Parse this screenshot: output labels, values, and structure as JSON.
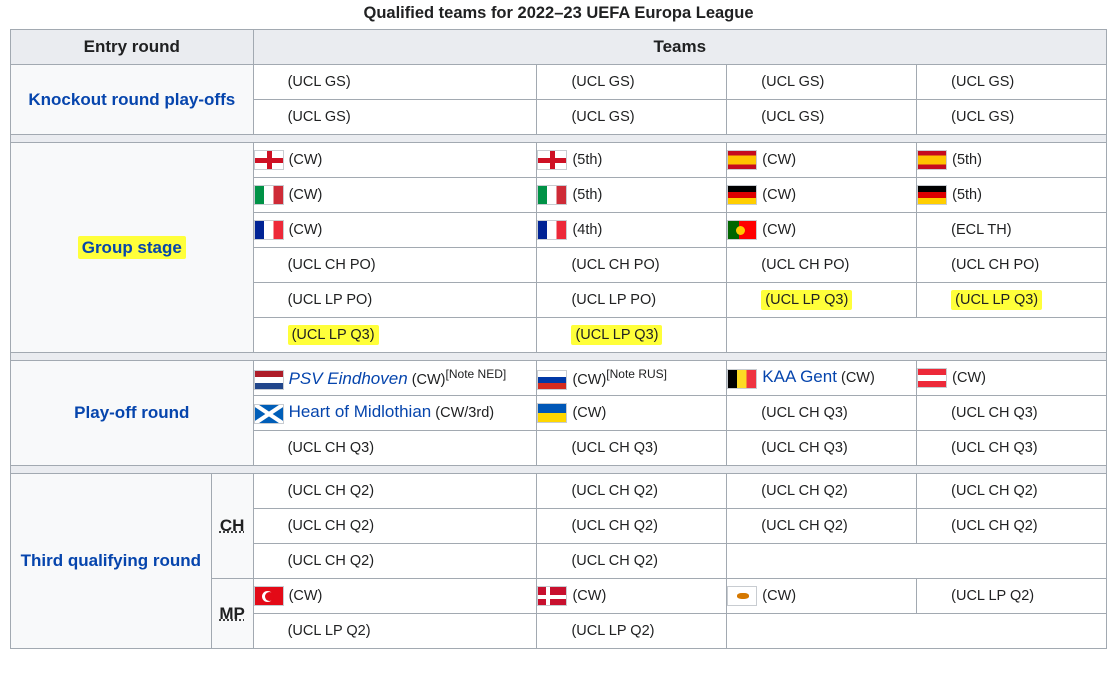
{
  "caption": "Qualified teams for 2022–23 UEFA Europa League",
  "headers": {
    "entry_round": "Entry round",
    "teams": "Teams"
  },
  "rounds": {
    "knockout": "Knockout round play-offs",
    "group": "Group stage",
    "playoff": "Play-off round",
    "third": "Third qualifying round",
    "ch": "CH",
    "mp": "MP"
  },
  "cells": {
    "ucl_gs": "(UCL GS)",
    "cw": "(CW)",
    "fifth": "(5th)",
    "fourth": "(4th)",
    "ecl_th": "(ECL TH)",
    "ucl_ch_po": "(UCL CH PO)",
    "ucl_lp_po": "(UCL LP PO)",
    "ucl_lp_q3": "(UCL LP Q3)",
    "ucl_ch_q3": "(UCL CH Q3)",
    "ucl_ch_q2": "(UCL CH Q2)",
    "ucl_lp_q2": "(UCL LP Q2)",
    "cw_3rd": "(CW/3rd)"
  },
  "teams": {
    "psv": "PSV Eindhoven",
    "gent": "KAA Gent",
    "hearts": "Heart of Midlothian"
  },
  "notes": {
    "ned": "[Note NED]",
    "rus": "[Note RUS]"
  },
  "colors": {
    "link": "#0645ad",
    "highlight": "#ffff3a",
    "header_bg": "#eaecf0",
    "border": "#a2a9b1"
  }
}
